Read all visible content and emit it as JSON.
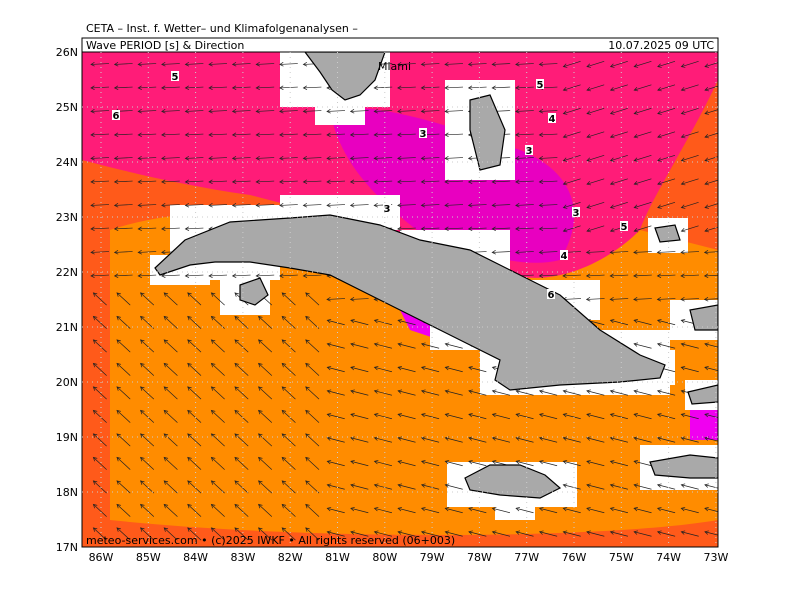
{
  "header": {
    "line1": "CETA – Inst. f. Wetter– und Klimafolgenanalysen –",
    "left": "Wave PERIOD [s] & Direction",
    "right": "10.07.2025 09 UTC"
  },
  "axes": {
    "lat": [
      "26N",
      "25N",
      "24N",
      "23N",
      "22N",
      "21N",
      "20N",
      "19N",
      "18N",
      "17N"
    ],
    "lon": [
      "86W",
      "85W",
      "84W",
      "83W",
      "82W",
      "81W",
      "80W",
      "79W",
      "78W",
      "77W",
      "76W",
      "75W",
      "74W",
      "73W"
    ]
  },
  "map_labels": {
    "city": "Miami",
    "contours": [
      "5",
      "6",
      "3",
      "3",
      "5",
      "4",
      "3",
      "3",
      "5",
      "4",
      "6"
    ]
  },
  "footer": "meteo-services.com • (c)2025 IWKF • All rights reserved (06+003)"
}
